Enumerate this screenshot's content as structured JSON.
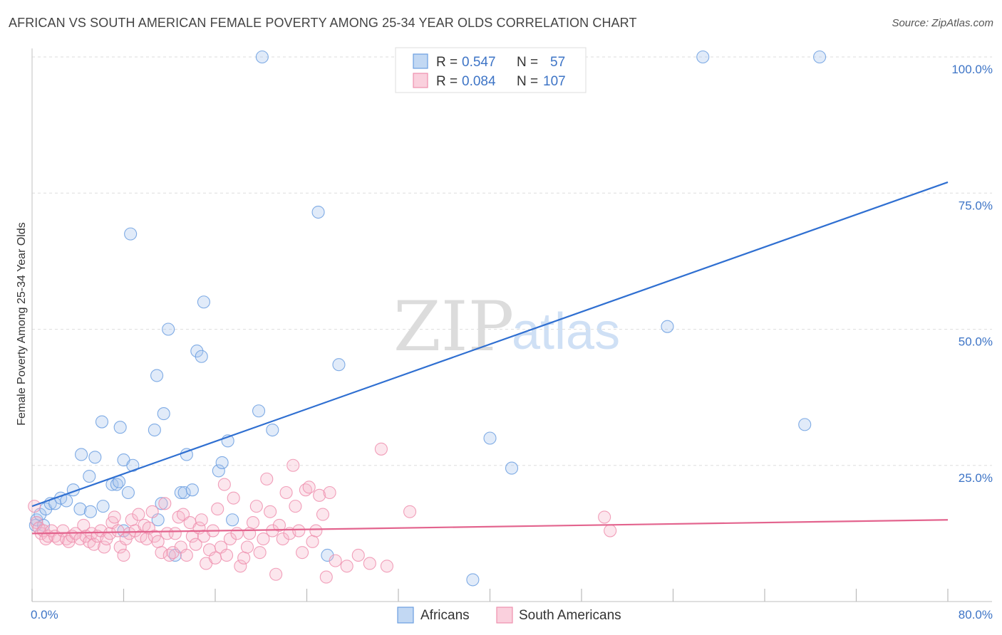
{
  "header": {
    "title": "AFRICAN VS SOUTH AMERICAN FEMALE POVERTY AMONG 25-34 YEAR OLDS CORRELATION CHART",
    "source": "Source: ZipAtlas.com"
  },
  "watermark": {
    "zip": "ZIP",
    "atlas": "atlas"
  },
  "legend": {
    "rows": [
      {
        "r_label": "R =",
        "r_value": "0.547",
        "n_label": "N =",
        "n_value": "57",
        "color": "#a9c7ee"
      },
      {
        "r_label": "R =",
        "r_value": "0.084",
        "n_label": "N =",
        "n_value": "107",
        "color": "#f7b8cb"
      }
    ]
  },
  "bottom_legend": {
    "africans": "Africans",
    "south_americans": "South Americans"
  },
  "chart_data": {
    "type": "scatter",
    "title": "AFRICAN VS SOUTH AMERICAN FEMALE POVERTY AMONG 25-34 YEAR OLDS CORRELATION CHART",
    "xlabel": "",
    "ylabel": "Female Poverty Among 25-34 Year Olds",
    "xlim": [
      0,
      80
    ],
    "ylim": [
      0,
      100
    ],
    "x_tick_labels": [
      "0.0%",
      "80.0%"
    ],
    "y_tick_labels": [
      "25.0%",
      "50.0%",
      "75.0%",
      "100.0%"
    ],
    "y_ticks": [
      25,
      50,
      75,
      100
    ],
    "grid": true,
    "legend_position": "top-center",
    "series": [
      {
        "name": "Africans",
        "color": "#6a9ee0",
        "fill": "#a9c7ee",
        "trend": {
          "x": [
            0,
            80
          ],
          "y": [
            17.5,
            77.0
          ],
          "color": "#2f6fd1"
        },
        "points": [
          [
            0.3,
            14
          ],
          [
            0.4,
            15
          ],
          [
            0.7,
            16
          ],
          [
            1.0,
            14
          ],
          [
            1.2,
            17
          ],
          [
            1.6,
            18
          ],
          [
            2.0,
            18
          ],
          [
            2.5,
            19
          ],
          [
            3.0,
            18.5
          ],
          [
            3.6,
            20.5
          ],
          [
            4.2,
            17
          ],
          [
            4.3,
            27
          ],
          [
            5.0,
            23
          ],
          [
            5.1,
            16.5
          ],
          [
            5.5,
            26.5
          ],
          [
            6.1,
            33
          ],
          [
            6.2,
            17.5
          ],
          [
            7.0,
            21.5
          ],
          [
            7.4,
            21.5
          ],
          [
            7.6,
            22
          ],
          [
            7.7,
            32
          ],
          [
            8.0,
            26
          ],
          [
            8.0,
            13
          ],
          [
            8.4,
            20
          ],
          [
            8.6,
            67.5
          ],
          [
            8.8,
            25
          ],
          [
            10.7,
            31.5
          ],
          [
            10.9,
            41.5
          ],
          [
            11.0,
            15
          ],
          [
            11.3,
            18
          ],
          [
            11.5,
            34.5
          ],
          [
            11.9,
            50
          ],
          [
            12.5,
            8.5
          ],
          [
            13.0,
            20
          ],
          [
            13.3,
            20
          ],
          [
            13.5,
            27
          ],
          [
            14.0,
            20.5
          ],
          [
            14.4,
            46
          ],
          [
            14.8,
            45
          ],
          [
            15.0,
            55
          ],
          [
            16.3,
            24
          ],
          [
            16.6,
            25.5
          ],
          [
            17.1,
            29.5
          ],
          [
            17.5,
            15
          ],
          [
            19.8,
            35
          ],
          [
            20.1,
            100
          ],
          [
            21.0,
            31.5
          ],
          [
            25.0,
            71.5
          ],
          [
            25.8,
            8.5
          ],
          [
            26.8,
            43.5
          ],
          [
            38.5,
            4
          ],
          [
            40.0,
            30
          ],
          [
            41.9,
            24.5
          ],
          [
            55.5,
            50.5
          ],
          [
            58.6,
            100
          ],
          [
            67.5,
            32.5
          ],
          [
            68.8,
            100
          ]
        ]
      },
      {
        "name": "South Americans",
        "color": "#ee8fae",
        "fill": "#f7b8cb",
        "trend": {
          "x": [
            0,
            80
          ],
          "y": [
            12.5,
            15.0
          ],
          "color": "#e3648e"
        },
        "points": [
          [
            0.2,
            17.5
          ],
          [
            0.4,
            14.5
          ],
          [
            0.6,
            13.5
          ],
          [
            0.8,
            12.5
          ],
          [
            1.0,
            13
          ],
          [
            1.2,
            11.5
          ],
          [
            1.4,
            12
          ],
          [
            1.7,
            13
          ],
          [
            2.0,
            12
          ],
          [
            2.3,
            11.5
          ],
          [
            2.7,
            13
          ],
          [
            3.0,
            11.5
          ],
          [
            3.2,
            11
          ],
          [
            3.5,
            12
          ],
          [
            3.8,
            12.5
          ],
          [
            4.2,
            11.5
          ],
          [
            4.5,
            14
          ],
          [
            4.7,
            12
          ],
          [
            5.0,
            11
          ],
          [
            5.2,
            12.5
          ],
          [
            5.4,
            10.5
          ],
          [
            5.7,
            12
          ],
          [
            6.0,
            13
          ],
          [
            6.3,
            10
          ],
          [
            6.5,
            11.5
          ],
          [
            6.8,
            12.5
          ],
          [
            7.0,
            14.5
          ],
          [
            7.2,
            15.5
          ],
          [
            7.5,
            13
          ],
          [
            7.7,
            10
          ],
          [
            8.0,
            8.5
          ],
          [
            8.2,
            11.5
          ],
          [
            8.5,
            12.5
          ],
          [
            8.7,
            15
          ],
          [
            9.0,
            13
          ],
          [
            9.3,
            16
          ],
          [
            9.5,
            12
          ],
          [
            9.8,
            14
          ],
          [
            10.0,
            11.5
          ],
          [
            10.2,
            13.5
          ],
          [
            10.5,
            16.5
          ],
          [
            10.7,
            12
          ],
          [
            11.0,
            11
          ],
          [
            11.3,
            9
          ],
          [
            11.6,
            18
          ],
          [
            11.8,
            12.5
          ],
          [
            12.0,
            8.5
          ],
          [
            12.3,
            9
          ],
          [
            12.5,
            12.5
          ],
          [
            12.8,
            15.5
          ],
          [
            13.0,
            10
          ],
          [
            13.2,
            16
          ],
          [
            13.5,
            8.5
          ],
          [
            13.8,
            14.5
          ],
          [
            14.0,
            12
          ],
          [
            14.3,
            10.5
          ],
          [
            14.6,
            13.5
          ],
          [
            14.8,
            15
          ],
          [
            15.0,
            12
          ],
          [
            15.2,
            7
          ],
          [
            15.5,
            9.5
          ],
          [
            15.8,
            13
          ],
          [
            16.0,
            8
          ],
          [
            16.2,
            17
          ],
          [
            16.5,
            10
          ],
          [
            16.8,
            21.5
          ],
          [
            17.0,
            8.5
          ],
          [
            17.3,
            11.5
          ],
          [
            17.6,
            19
          ],
          [
            17.9,
            12.5
          ],
          [
            18.2,
            6.5
          ],
          [
            18.5,
            8
          ],
          [
            18.8,
            10
          ],
          [
            19.0,
            12.5
          ],
          [
            19.3,
            14.5
          ],
          [
            19.6,
            17.5
          ],
          [
            19.9,
            9
          ],
          [
            20.2,
            11.5
          ],
          [
            20.5,
            22.5
          ],
          [
            20.8,
            16.5
          ],
          [
            21.0,
            13
          ],
          [
            21.3,
            5
          ],
          [
            21.6,
            14
          ],
          [
            21.9,
            11.5
          ],
          [
            22.2,
            20
          ],
          [
            22.5,
            12.5
          ],
          [
            22.8,
            25
          ],
          [
            23.0,
            17.5
          ],
          [
            23.3,
            13
          ],
          [
            23.6,
            9
          ],
          [
            23.9,
            20.5
          ],
          [
            24.2,
            21
          ],
          [
            24.5,
            11
          ],
          [
            24.8,
            13
          ],
          [
            25.1,
            19.5
          ],
          [
            25.4,
            16
          ],
          [
            25.7,
            4.5
          ],
          [
            26.0,
            20
          ],
          [
            26.5,
            7.5
          ],
          [
            27.5,
            6.5
          ],
          [
            28.5,
            8.5
          ],
          [
            29.5,
            7
          ],
          [
            30.5,
            28
          ],
          [
            31.0,
            6.5
          ],
          [
            33.0,
            16.5
          ],
          [
            50.0,
            15.5
          ],
          [
            50.5,
            13
          ]
        ]
      }
    ]
  }
}
